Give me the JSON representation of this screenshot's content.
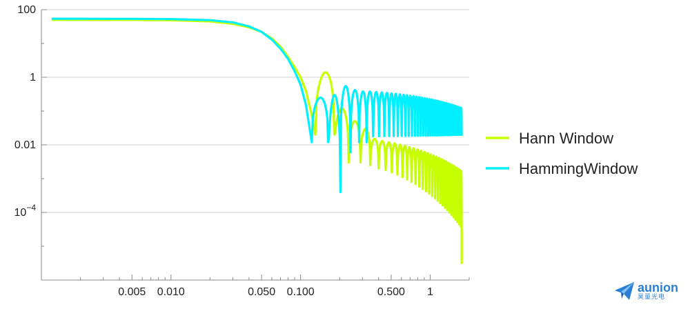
{
  "chart_data": {
    "type": "line",
    "title": "",
    "xlabel": "",
    "ylabel": "",
    "x_scale": "log",
    "y_scale": "log",
    "xlim": [
      0.001,
      2.0
    ],
    "ylim": [
      1e-06,
      100
    ],
    "grid": {
      "horizontal": true,
      "vertical": false
    },
    "legend_position": "right",
    "x_ticks": [
      {
        "value": 0.005,
        "label": "0.005"
      },
      {
        "value": 0.01,
        "label": "0.010"
      },
      {
        "value": 0.05,
        "label": "0.050"
      },
      {
        "value": 0.1,
        "label": "0.100"
      },
      {
        "value": 0.5,
        "label": "0.500"
      },
      {
        "value": 1,
        "label": "1"
      }
    ],
    "y_ticks": [
      {
        "value": 100,
        "base": "100",
        "exp": ""
      },
      {
        "value": 1,
        "base": "1",
        "exp": ""
      },
      {
        "value": 0.01,
        "base": "0.01",
        "exp": ""
      },
      {
        "value": 0.0001,
        "base": "10",
        "exp": "−4"
      }
    ],
    "series": [
      {
        "name": "Hann Window",
        "color": "#c6ff00",
        "plateau": 50,
        "curve": [
          [
            0.0012,
            50
          ],
          [
            0.005,
            49.5
          ],
          [
            0.01,
            48.5
          ],
          [
            0.02,
            45
          ],
          [
            0.03,
            38
          ],
          [
            0.04,
            30
          ],
          [
            0.05,
            22
          ],
          [
            0.06,
            14
          ],
          [
            0.07,
            8
          ],
          [
            0.08,
            4
          ],
          [
            0.09,
            2
          ],
          [
            0.1,
            1.0
          ],
          [
            0.11,
            0.4
          ],
          [
            0.12,
            0.1
          ],
          [
            0.13,
            0.02
          ]
        ],
        "lobes": [
          [
            0.13,
            0.182,
            0.15,
            1.4,
            0.02
          ],
          [
            0.182,
            0.235,
            0.205,
            0.12,
            0.003
          ],
          [
            0.235,
            0.29,
            0.26,
            0.05,
            0.003
          ],
          [
            0.29,
            0.345,
            0.316,
            0.03,
            0.0025
          ],
          [
            0.345,
            0.4,
            0.37,
            0.015,
            0.002
          ]
        ],
        "tail": {
          "from": 0.4,
          "to": 1.75,
          "period": 0.053,
          "peak_start": 0.013,
          "peak_end": 0.0016,
          "trough_start": 0.0018,
          "trough_end": 3e-05,
          "final_drop": 3e-06
        }
      },
      {
        "name": "HammingWindow",
        "color": "#00f0ff",
        "plateau": 54,
        "curve": [
          [
            0.0012,
            54
          ],
          [
            0.005,
            53.5
          ],
          [
            0.01,
            52.5
          ],
          [
            0.02,
            49
          ],
          [
            0.03,
            42
          ],
          [
            0.04,
            32
          ],
          [
            0.05,
            22
          ],
          [
            0.06,
            13
          ],
          [
            0.07,
            7
          ],
          [
            0.08,
            3.5
          ],
          [
            0.09,
            1.5
          ],
          [
            0.1,
            0.6
          ],
          [
            0.11,
            0.15
          ],
          [
            0.122,
            0.012
          ]
        ],
        "lobes": [
          [
            0.122,
            0.163,
            0.14,
            0.25,
            0.012
          ],
          [
            0.163,
            0.203,
            0.18,
            0.3,
            0.0004
          ],
          [
            0.203,
            0.243,
            0.22,
            0.55,
            0.006
          ],
          [
            0.243,
            0.283,
            0.26,
            0.42,
            0.012
          ],
          [
            0.283,
            0.323,
            0.3,
            0.38,
            0.012
          ]
        ],
        "tail": {
          "from": 0.323,
          "to": 1.75,
          "period": 0.04,
          "peak_start": 0.38,
          "peak_end": 0.12,
          "trough_start": 0.018,
          "trough_end": 0.02,
          "final_drop": 0.02
        }
      }
    ]
  },
  "brand": {
    "name": "aunion",
    "sub": "昊量光电"
  }
}
